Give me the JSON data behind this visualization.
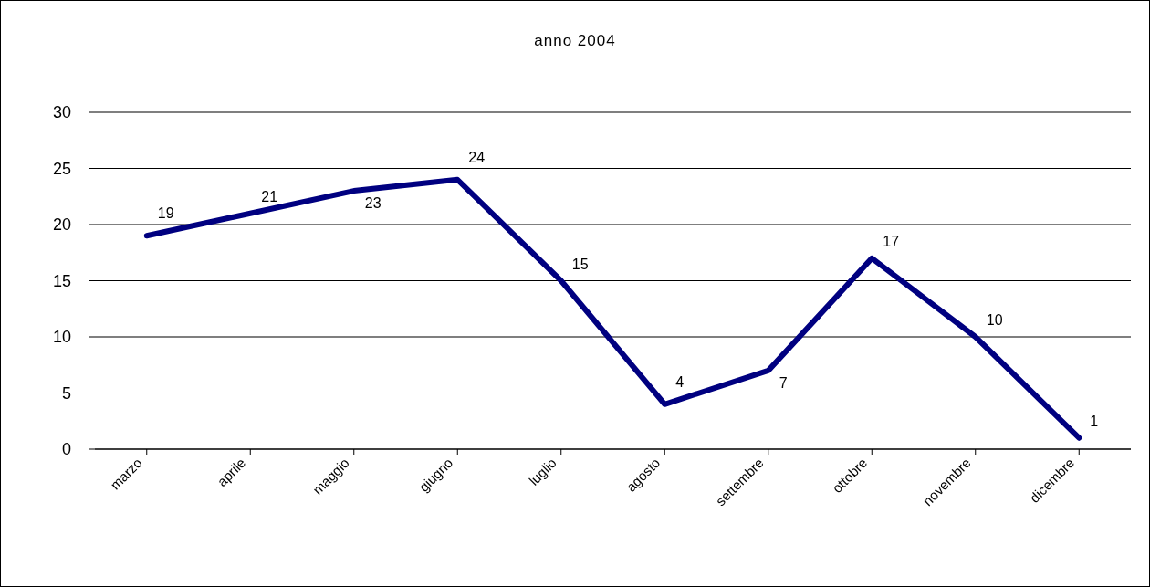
{
  "chart_data": {
    "type": "line",
    "title": "anno 2004",
    "categories": [
      "marzo",
      "aprile",
      "maggio",
      "giugno",
      "luglio",
      "agosto",
      "settembre",
      "ottobre",
      "novembre",
      "dicembre"
    ],
    "series": [
      {
        "color": "#000080",
        "values": [
          19,
          21,
          23,
          24,
          15,
          4,
          7,
          17,
          10,
          1
        ]
      }
    ],
    "ylim": [
      0,
      30
    ],
    "yticks": [
      0,
      5,
      10,
      15,
      20,
      25,
      30
    ],
    "grid": "y",
    "legend": false,
    "marker": "none",
    "line_style": "solid",
    "data_labels": true
  }
}
